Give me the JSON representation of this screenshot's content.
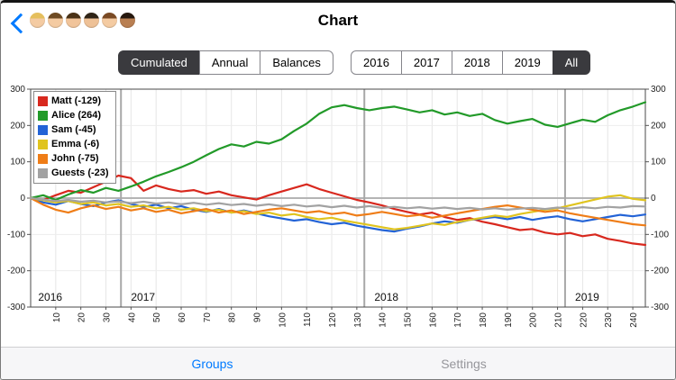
{
  "nav": {
    "back_icon": "chevron-left",
    "title": "Chart",
    "players": [
      {
        "label": "player-1",
        "hair": "#e5bf5d",
        "skin": "#f4cba2"
      },
      {
        "label": "player-2",
        "hair": "#6e4a22",
        "skin": "#f4cba2"
      },
      {
        "label": "player-3",
        "hair": "#4a3216",
        "skin": "#f1c49a"
      },
      {
        "label": "player-4",
        "hair": "#2f2417",
        "skin": "#eec197"
      },
      {
        "label": "player-5",
        "hair": "#7a4a24",
        "skin": "#f4cba2"
      },
      {
        "label": "player-6",
        "hair": "#26180e",
        "skin": "#b97f52"
      }
    ]
  },
  "controls": {
    "mode": {
      "options": [
        "Cumulated",
        "Annual",
        "Balances"
      ],
      "selected": "Cumulated"
    },
    "period": {
      "options": [
        "2016",
        "2017",
        "2018",
        "2019",
        "All"
      ],
      "selected": "All"
    }
  },
  "chart_data": {
    "type": "line",
    "title": "",
    "x_step": 5,
    "x_max": 245,
    "x_ticks": [
      10,
      20,
      30,
      40,
      50,
      60,
      70,
      80,
      90,
      100,
      110,
      120,
      130,
      140,
      150,
      160,
      170,
      180,
      190,
      200,
      210,
      220,
      230,
      240
    ],
    "ylim": [
      -300,
      300
    ],
    "y_ticks": [
      300,
      200,
      100,
      0,
      -100,
      -200,
      -300
    ],
    "grid": true,
    "legend_position": "top-left",
    "year_boundaries": [
      36,
      133,
      213
    ],
    "year_labels": [
      {
        "label": "2016",
        "x": 3
      },
      {
        "label": "2017",
        "x": 40
      },
      {
        "label": "2018",
        "x": 137
      },
      {
        "label": "2019",
        "x": 217
      }
    ],
    "series": [
      {
        "name": "Matt",
        "total": -129,
        "color": "#d8281e",
        "values": [
          0,
          -5,
          8,
          20,
          15,
          30,
          45,
          62,
          55,
          20,
          35,
          25,
          18,
          22,
          12,
          18,
          8,
          2,
          -4,
          8,
          18,
          28,
          38,
          25,
          15,
          5,
          -5,
          -12,
          -20,
          -30,
          -38,
          -45,
          -40,
          -52,
          -60,
          -55,
          -65,
          -72,
          -80,
          -88,
          -85,
          -95,
          -100,
          -96,
          -105,
          -100,
          -112,
          -118,
          -125,
          -129
        ]
      },
      {
        "name": "Alice",
        "total": 264,
        "color": "#229a29",
        "values": [
          0,
          8,
          -5,
          10,
          22,
          15,
          28,
          20,
          32,
          45,
          60,
          72,
          85,
          100,
          118,
          135,
          148,
          142,
          155,
          150,
          162,
          185,
          205,
          232,
          250,
          256,
          248,
          242,
          248,
          252,
          244,
          236,
          242,
          230,
          236,
          226,
          232,
          215,
          205,
          212,
          218,
          202,
          196,
          206,
          216,
          210,
          228,
          242,
          252,
          264
        ]
      },
      {
        "name": "Sam",
        "total": -45,
        "color": "#2363d6",
        "values": [
          0,
          -12,
          -18,
          -8,
          -16,
          -22,
          -12,
          -6,
          -16,
          -24,
          -18,
          -28,
          -22,
          -32,
          -38,
          -30,
          -40,
          -34,
          -42,
          -50,
          -56,
          -62,
          -58,
          -66,
          -72,
          -68,
          -76,
          -82,
          -88,
          -92,
          -84,
          -78,
          -70,
          -64,
          -68,
          -60,
          -56,
          -52,
          -58,
          -52,
          -60,
          -54,
          -50,
          -58,
          -64,
          -58,
          -52,
          -46,
          -50,
          -45
        ]
      },
      {
        "name": "Emma",
        "total": -6,
        "color": "#e0c41f",
        "values": [
          0,
          -6,
          -12,
          -8,
          -16,
          -12,
          -20,
          -16,
          -24,
          -20,
          -28,
          -24,
          -32,
          -28,
          -36,
          -32,
          -40,
          -36,
          -44,
          -40,
          -48,
          -44,
          -52,
          -58,
          -54,
          -62,
          -68,
          -74,
          -80,
          -86,
          -82,
          -76,
          -70,
          -74,
          -66,
          -60,
          -54,
          -48,
          -52,
          -44,
          -38,
          -32,
          -28,
          -20,
          -12,
          -4,
          4,
          8,
          -2,
          -6
        ]
      },
      {
        "name": "John",
        "total": -75,
        "color": "#ef7d17",
        "values": [
          0,
          -18,
          -32,
          -40,
          -28,
          -20,
          -30,
          -24,
          -34,
          -28,
          -38,
          -32,
          -42,
          -36,
          -30,
          -40,
          -34,
          -44,
          -38,
          -32,
          -28,
          -34,
          -40,
          -36,
          -44,
          -40,
          -48,
          -44,
          -38,
          -44,
          -50,
          -46,
          -54,
          -48,
          -42,
          -36,
          -30,
          -24,
          -20,
          -26,
          -32,
          -38,
          -34,
          -42,
          -48,
          -54,
          -60,
          -66,
          -72,
          -75
        ]
      },
      {
        "name": "Guests",
        "total": -23,
        "color": "#a2a2a2",
        "values": [
          0,
          -4,
          -8,
          -5,
          -10,
          -7,
          -12,
          -9,
          -14,
          -10,
          -15,
          -12,
          -17,
          -13,
          -18,
          -14,
          -19,
          -16,
          -21,
          -17,
          -22,
          -18,
          -23,
          -20,
          -25,
          -21,
          -26,
          -22,
          -27,
          -24,
          -28,
          -25,
          -29,
          -26,
          -30,
          -27,
          -31,
          -28,
          -32,
          -29,
          -27,
          -30,
          -26,
          -29,
          -25,
          -28,
          -24,
          -26,
          -22,
          -23
        ]
      }
    ]
  },
  "tabbar": {
    "tabs": [
      {
        "label": "Groups",
        "active": true
      },
      {
        "label": "Settings",
        "active": false
      }
    ]
  }
}
